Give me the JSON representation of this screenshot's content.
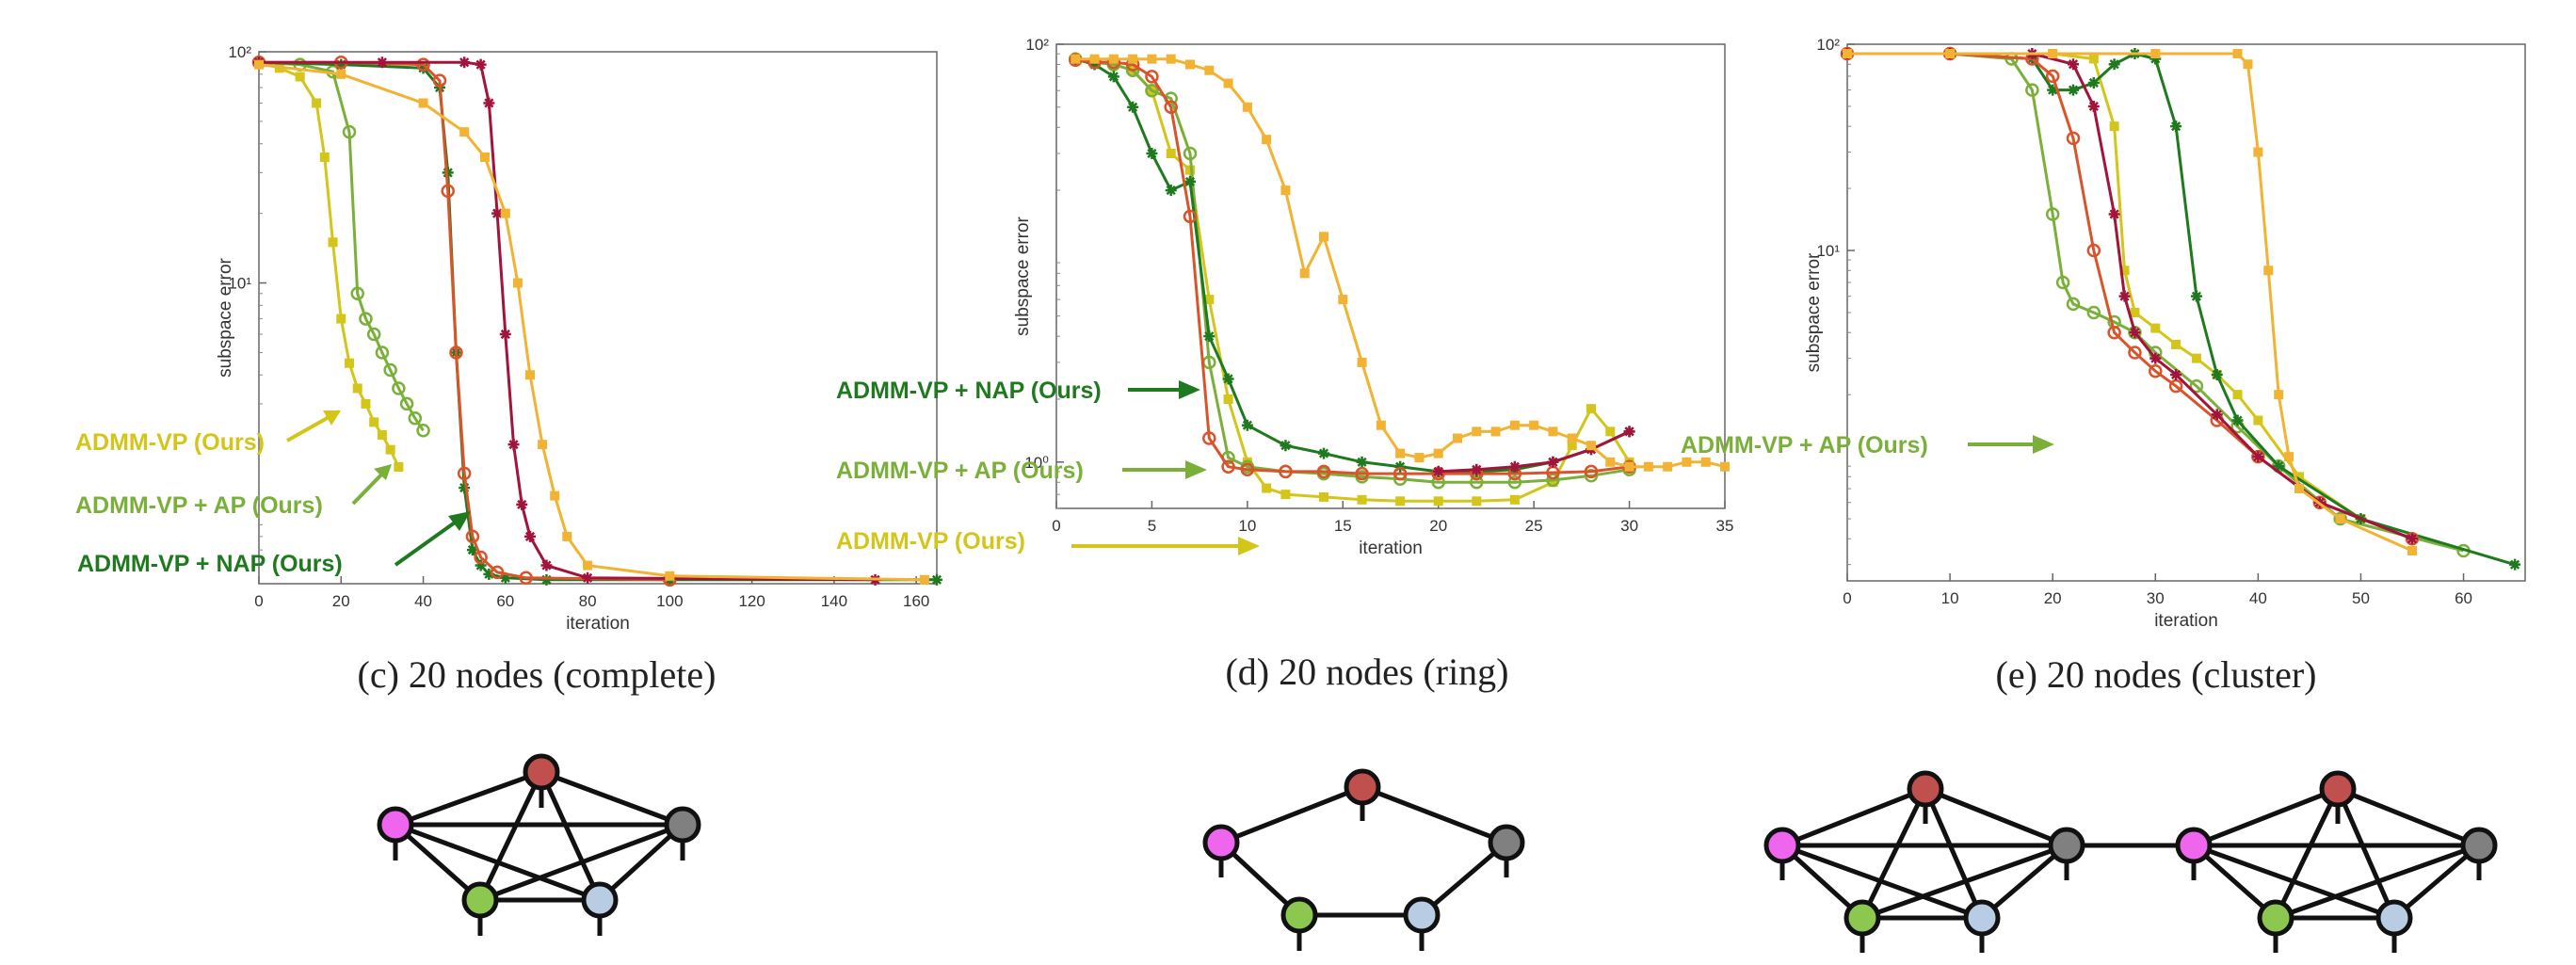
{
  "colors": {
    "admm_vp": "#d4c51a",
    "admm_vp_ap": "#7ab03a",
    "admm_vp_nap": "#1f7a1f",
    "other_red": "#d9542b",
    "other_crimson": "#a3143c",
    "other_orange": "#f2b233",
    "axis": "#555555",
    "node_red": "#c0504d",
    "node_magenta": "#ee66ee",
    "node_gray": "#808080",
    "node_green": "#8cc850",
    "node_blue": "#b8cce4"
  },
  "panels": [
    {
      "id": "c",
      "caption": "(c) 20 nodes (complete)",
      "graph": "complete",
      "annotations": [
        {
          "text": "ADMM-VP (Ours)",
          "series": "admm_vp"
        },
        {
          "text": "ADMM-VP + AP (Ours)",
          "series": "admm_vp_ap"
        },
        {
          "text": "ADMM-VP + NAP (Ours)",
          "series": "admm_vp_nap"
        }
      ]
    },
    {
      "id": "d",
      "caption": "(d) 20 nodes (ring)",
      "graph": "ring",
      "annotations": [
        {
          "text": "ADMM-VP + NAP (Ours)",
          "series": "admm_vp_nap"
        },
        {
          "text": "ADMM-VP + AP (Ours)",
          "series": "admm_vp_ap"
        },
        {
          "text": "ADMM-VP (Ours)",
          "series": "admm_vp"
        }
      ]
    },
    {
      "id": "e",
      "caption": "(e) 20 nodes (cluster)",
      "graph": "cluster",
      "annotations": [
        {
          "text": "ADMM-VP + AP (Ours)",
          "series": "admm_vp_ap"
        }
      ]
    }
  ],
  "chart_data": [
    {
      "type": "line",
      "title": "",
      "xlabel": "iteration",
      "ylabel": "subspace error",
      "yscale": "log",
      "xlim": [
        0,
        165
      ],
      "ylim": [
        0.5,
        100
      ],
      "xticks": [
        0,
        20,
        40,
        60,
        80,
        100,
        120,
        140,
        160
      ],
      "yticks": [
        {
          "value": 100,
          "label": "10²"
        },
        {
          "value": 10,
          "label": "10¹"
        }
      ],
      "grid": false,
      "series": [
        {
          "key": "admm_vp",
          "color": "#d4c51a",
          "marker": "square",
          "x": [
            0,
            5,
            10,
            14,
            16,
            18,
            20,
            22,
            24,
            26,
            28,
            30,
            32,
            34
          ],
          "y": [
            90,
            85,
            78,
            60,
            35,
            15,
            7,
            4.5,
            3.5,
            3,
            2.5,
            2.2,
            1.9,
            1.6
          ]
        },
        {
          "key": "admm_vp_ap",
          "color": "#7ab03a",
          "marker": "circle",
          "x": [
            0,
            10,
            18,
            22,
            24,
            26,
            28,
            30,
            32,
            34,
            36,
            38,
            40
          ],
          "y": [
            90,
            88,
            82,
            45,
            9,
            7,
            6,
            5,
            4.2,
            3.5,
            3,
            2.6,
            2.3
          ]
        },
        {
          "key": "admm_vp_nap",
          "color": "#1f7a1f",
          "marker": "star",
          "x": [
            0,
            20,
            40,
            44,
            46,
            48,
            50,
            52,
            54,
            56,
            60,
            70,
            100,
            165
          ],
          "y": [
            90,
            88,
            85,
            70,
            30,
            5,
            1.3,
            0.7,
            0.6,
            0.55,
            0.53,
            0.52,
            0.52,
            0.52
          ]
        },
        {
          "key": "other_red",
          "color": "#d9542b",
          "marker": "circle",
          "x": [
            0,
            20,
            40,
            44,
            46,
            48,
            50,
            52,
            54,
            58,
            65,
            100
          ],
          "y": [
            90,
            90,
            88,
            75,
            25,
            5,
            1.5,
            0.8,
            0.65,
            0.56,
            0.53,
            0.52
          ]
        },
        {
          "key": "other_crimson",
          "color": "#a3143c",
          "marker": "star",
          "x": [
            0,
            30,
            50,
            54,
            56,
            58,
            60,
            62,
            64,
            66,
            70,
            80,
            150
          ],
          "y": [
            90,
            90,
            90,
            88,
            60,
            20,
            6,
            2,
            1.1,
            0.8,
            0.6,
            0.53,
            0.52
          ]
        },
        {
          "key": "other_orange",
          "color": "#f2b233",
          "marker": "square",
          "x": [
            0,
            20,
            40,
            50,
            55,
            60,
            63,
            66,
            69,
            72,
            75,
            80,
            100,
            162
          ],
          "y": [
            88,
            80,
            60,
            45,
            35,
            20,
            10,
            4,
            2,
            1.2,
            0.8,
            0.6,
            0.54,
            0.52
          ]
        }
      ]
    },
    {
      "type": "line",
      "title": "",
      "xlabel": "iteration",
      "ylabel": "subspace error",
      "yscale": "log",
      "xlim": [
        0,
        35
      ],
      "ylim": [
        0.6,
        100
      ],
      "xticks": [
        0,
        5,
        10,
        15,
        20,
        25,
        30,
        35
      ],
      "yticks": [
        {
          "value": 100,
          "label": "10²"
        },
        {
          "value": 1,
          "label": "10⁰"
        }
      ],
      "grid": false,
      "series": [
        {
          "key": "admm_vp",
          "color": "#d4c51a",
          "marker": "square",
          "x": [
            1,
            2,
            3,
            4,
            5,
            6,
            7,
            8,
            9,
            10,
            11,
            12,
            14,
            16,
            18,
            20,
            22,
            24,
            26,
            27,
            28,
            29,
            30
          ],
          "y": [
            85,
            82,
            80,
            75,
            60,
            30,
            25,
            6,
            2,
            1,
            0.75,
            0.7,
            0.68,
            0.66,
            0.65,
            0.65,
            0.65,
            0.66,
            0.8,
            1.2,
            1.8,
            1.4,
            1.0
          ]
        },
        {
          "key": "admm_vp_ap",
          "color": "#7ab03a",
          "marker": "circle",
          "x": [
            1,
            2,
            3,
            4,
            5,
            6,
            7,
            8,
            9,
            10,
            12,
            14,
            16,
            18,
            20,
            22,
            24,
            26,
            28,
            30
          ],
          "y": [
            85,
            82,
            80,
            75,
            60,
            55,
            30,
            3,
            1.05,
            0.95,
            0.9,
            0.88,
            0.85,
            0.83,
            0.8,
            0.8,
            0.8,
            0.82,
            0.86,
            0.92
          ]
        },
        {
          "key": "admm_vp_nap",
          "color": "#1f7a1f",
          "marker": "star",
          "x": [
            1,
            2,
            3,
            4,
            5,
            6,
            7,
            8,
            9,
            10,
            12,
            14,
            16,
            18,
            20,
            22,
            24,
            26,
            28,
            30
          ],
          "y": [
            85,
            80,
            70,
            50,
            30,
            20,
            22,
            4,
            2.5,
            1.5,
            1.2,
            1.1,
            1.0,
            0.95,
            0.9,
            0.9,
            0.92,
            1.0,
            1.15,
            1.4
          ]
        },
        {
          "key": "other_red",
          "color": "#d9542b",
          "marker": "circle",
          "x": [
            1,
            2,
            3,
            4,
            5,
            6,
            7,
            8,
            9,
            10,
            12,
            14,
            16,
            18,
            20,
            22,
            24,
            26,
            28,
            30
          ],
          "y": [
            84,
            82,
            82,
            80,
            70,
            50,
            15,
            1.3,
            0.95,
            0.92,
            0.9,
            0.9,
            0.88,
            0.88,
            0.88,
            0.88,
            0.88,
            0.89,
            0.9,
            0.95
          ]
        },
        {
          "key": "other_crimson",
          "color": "#a3143c",
          "marker": "star",
          "x": [
            20,
            22,
            24,
            26,
            28,
            30
          ],
          "y": [
            0.9,
            0.92,
            0.95,
            1.0,
            1.15,
            1.4
          ]
        },
        {
          "key": "other_orange",
          "color": "#f2b233",
          "marker": "square",
          "x": [
            1,
            2,
            3,
            4,
            5,
            6,
            7,
            8,
            9,
            10,
            11,
            12,
            13,
            14,
            15,
            16,
            17,
            18,
            19,
            20,
            21,
            22,
            23,
            24,
            25,
            26,
            27,
            28,
            29,
            30,
            31,
            32,
            33,
            34,
            35
          ],
          "y": [
            85,
            85,
            85,
            85,
            85,
            85,
            80,
            75,
            65,
            50,
            35,
            20,
            8,
            12,
            6,
            3,
            1.5,
            1.1,
            1.05,
            1.1,
            1.3,
            1.4,
            1.4,
            1.5,
            1.5,
            1.4,
            1.3,
            1.2,
            1.0,
            0.95,
            0.95,
            0.95,
            1.0,
            1.0,
            0.95
          ]
        }
      ]
    },
    {
      "type": "line",
      "title": "",
      "xlabel": "iteration",
      "ylabel": "subspace error",
      "yscale": "log",
      "xlim": [
        0,
        66
      ],
      "ylim": [
        0.25,
        100
      ],
      "xticks": [
        0,
        10,
        20,
        30,
        40,
        50,
        60
      ],
      "yticks": [
        {
          "value": 100,
          "label": "10²"
        },
        {
          "value": 10,
          "label": "10¹"
        }
      ],
      "grid": false,
      "series": [
        {
          "key": "admm_vp",
          "color": "#d4c51a",
          "marker": "square",
          "x": [
            0,
            10,
            20,
            24,
            26,
            27,
            28,
            30,
            32,
            34,
            36,
            38,
            40,
            44,
            50
          ],
          "y": [
            90,
            90,
            90,
            85,
            40,
            8,
            5,
            4.2,
            3.5,
            3,
            2.5,
            2,
            1.5,
            0.8,
            0.5
          ]
        },
        {
          "key": "admm_vp_ap",
          "color": "#7ab03a",
          "marker": "circle",
          "x": [
            0,
            10,
            16,
            18,
            20,
            21,
            22,
            24,
            26,
            28,
            30,
            34,
            38,
            42,
            48,
            60
          ],
          "y": [
            90,
            90,
            85,
            60,
            15,
            7,
            5.5,
            5,
            4.5,
            4,
            3.2,
            2.2,
            1.4,
            0.9,
            0.5,
            0.35
          ]
        },
        {
          "key": "admm_vp_nap",
          "color": "#1f7a1f",
          "marker": "star",
          "x": [
            0,
            10,
            18,
            20,
            22,
            24,
            26,
            28,
            30,
            32,
            34,
            36,
            38,
            42,
            50,
            65
          ],
          "y": [
            90,
            90,
            85,
            60,
            60,
            65,
            80,
            90,
            85,
            40,
            6,
            2.5,
            1.5,
            0.9,
            0.5,
            0.3
          ]
        },
        {
          "key": "other_red",
          "color": "#d9542b",
          "marker": "circle",
          "x": [
            0,
            10,
            18,
            20,
            22,
            24,
            26,
            28,
            30,
            32,
            36,
            40,
            46,
            55
          ],
          "y": [
            90,
            90,
            85,
            70,
            35,
            10,
            4,
            3.2,
            2.6,
            2.2,
            1.5,
            1.0,
            0.6,
            0.4
          ]
        },
        {
          "key": "other_crimson",
          "color": "#a3143c",
          "marker": "star",
          "x": [
            0,
            10,
            18,
            22,
            24,
            26,
            27,
            28,
            30,
            32,
            36,
            40,
            46,
            55
          ],
          "y": [
            90,
            90,
            90,
            80,
            50,
            15,
            6,
            4,
            3,
            2.5,
            1.6,
            1.0,
            0.6,
            0.4
          ]
        },
        {
          "key": "other_orange",
          "color": "#f2b233",
          "marker": "square",
          "x": [
            0,
            10,
            20,
            30,
            38,
            39,
            40,
            41,
            42,
            43,
            44,
            48,
            55
          ],
          "y": [
            90,
            90,
            90,
            90,
            90,
            80,
            30,
            8,
            2,
            1,
            0.7,
            0.5,
            0.35
          ]
        }
      ]
    }
  ]
}
